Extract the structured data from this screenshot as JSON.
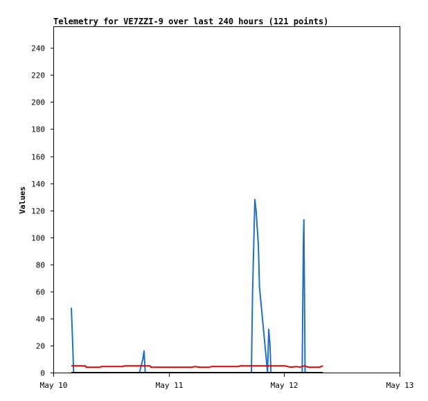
{
  "chart_data": {
    "type": "line",
    "title": "Telemetry for VE7ZZI-9 over last 240 hours (121 points)",
    "xlabel": "",
    "ylabel": "Values",
    "x_ticks": [
      "May 10",
      "May 11",
      "May 12",
      "May 13"
    ],
    "x_range_days": [
      0,
      3
    ],
    "ylim": [
      0,
      256
    ],
    "y_ticks": [
      0,
      20,
      40,
      60,
      80,
      100,
      120,
      140,
      160,
      180,
      200,
      220,
      240
    ],
    "grid": false,
    "legend": "none",
    "series": [
      {
        "color": "#1f6fc5",
        "points": [
          [
            0.15,
            48
          ],
          [
            0.16,
            25
          ],
          [
            0.17,
            0
          ],
          [
            0.74,
            0
          ],
          [
            0.77,
            10
          ],
          [
            0.78,
            16
          ],
          [
            0.79,
            0
          ],
          [
            1.71,
            0
          ],
          [
            1.72,
            60
          ],
          [
            1.74,
            128
          ],
          [
            1.75,
            120
          ],
          [
            1.77,
            95
          ],
          [
            1.78,
            63
          ],
          [
            1.85,
            0
          ],
          [
            1.86,
            32
          ],
          [
            1.87,
            22
          ],
          [
            1.88,
            0
          ],
          [
            2.15,
            0
          ],
          [
            2.16,
            95
          ],
          [
            2.165,
            113
          ],
          [
            2.17,
            55
          ],
          [
            2.175,
            0
          ]
        ]
      },
      {
        "color": "#e00000",
        "points": [
          [
            0.15,
            5
          ],
          [
            0.27,
            5
          ],
          [
            0.28,
            4
          ],
          [
            0.4,
            4
          ],
          [
            0.41,
            4.5
          ],
          [
            0.6,
            4.5
          ],
          [
            0.61,
            5
          ],
          [
            0.83,
            5
          ],
          [
            0.84,
            4
          ],
          [
            1.2,
            4
          ],
          [
            1.22,
            4.5
          ],
          [
            1.26,
            4
          ],
          [
            1.35,
            4
          ],
          [
            1.36,
            4.5
          ],
          [
            1.6,
            4.5
          ],
          [
            1.61,
            5
          ],
          [
            2.0,
            5
          ],
          [
            2.05,
            4
          ],
          [
            2.1,
            4.5
          ],
          [
            2.13,
            4
          ],
          [
            2.17,
            5
          ],
          [
            2.2,
            4
          ],
          [
            2.3,
            4
          ],
          [
            2.33,
            5
          ]
        ]
      },
      {
        "color": "#000000",
        "points": [
          [
            0.15,
            0
          ],
          [
            2.33,
            0
          ]
        ]
      }
    ]
  }
}
